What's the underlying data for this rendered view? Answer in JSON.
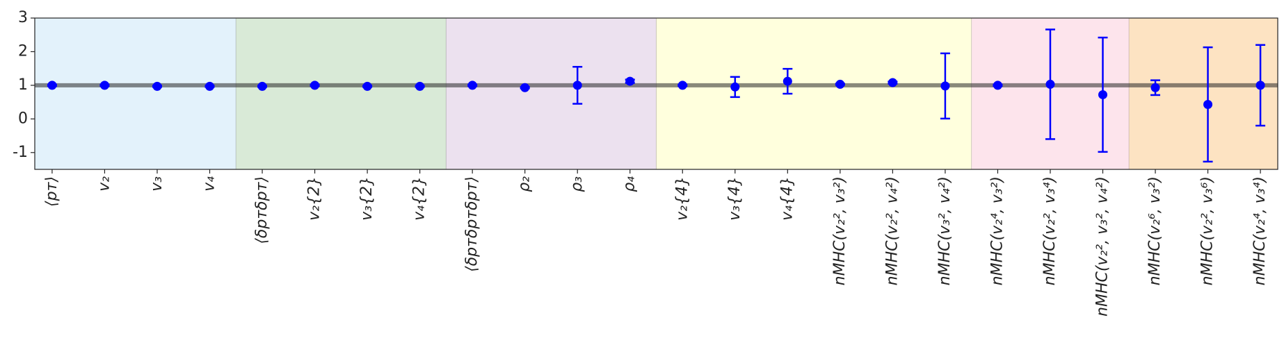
{
  "chart_data": {
    "type": "errorbar",
    "categories": [
      "⟨pᴛ⟩",
      "v₂",
      "v₃",
      "v₄",
      "⟨δpᴛδpᴛ⟩",
      "v₂{2}",
      "v₃{2}",
      "v₄{2}",
      "⟨δpᴛδpᴛδpᴛ⟩",
      "ρ₂",
      "ρ₃",
      "ρ₄",
      "v₂{4}",
      "v₃{4}",
      "v₄{4}",
      "nMHC(v₂², v₃²)",
      "nMHC(v₂², v₄²)",
      "nMHC(v₃², v₄²)",
      "nMHC(v₂⁴, v₃²)",
      "nMHC(v₂², v₃⁴)",
      "nMHC(v₂², v₃², v₄²)",
      "nMHC(v₂⁶, v₃²)",
      "nMHC(v₂², v₃⁶)",
      "nMHC(v₂⁴, v₃⁴)"
    ],
    "values": [
      1.0,
      1.0,
      0.97,
      0.97,
      0.97,
      1.0,
      0.97,
      0.97,
      1.0,
      0.93,
      1.0,
      1.12,
      1.0,
      0.95,
      1.12,
      1.03,
      1.08,
      0.98,
      1.0,
      1.03,
      0.72,
      0.93,
      0.43,
      1.0
    ],
    "errors": [
      0.02,
      0.02,
      0.02,
      0.02,
      0.02,
      0.02,
      0.02,
      0.02,
      0.02,
      0.02,
      0.55,
      0.05,
      0.02,
      0.3,
      0.37,
      0.02,
      0.03,
      0.97,
      0.02,
      1.63,
      1.7,
      0.22,
      1.7,
      1.2
    ],
    "color": "#0000ff",
    "reference_line": 1,
    "regions": [
      {
        "from": 0,
        "to": 3,
        "color": "#e3f2fb"
      },
      {
        "from": 4,
        "to": 7,
        "color": "#d9ead7"
      },
      {
        "from": 8,
        "to": 11,
        "color": "#ece1ef"
      },
      {
        "from": 12,
        "to": 17,
        "color": "#ffffdd"
      },
      {
        "from": 18,
        "to": 20,
        "color": "#fde4ec"
      },
      {
        "from": 21,
        "to": 23,
        "color": "#fde3c2"
      }
    ],
    "ylim": [
      -1.5,
      3
    ],
    "yticks": [
      -1,
      0,
      1,
      2,
      3
    ]
  }
}
